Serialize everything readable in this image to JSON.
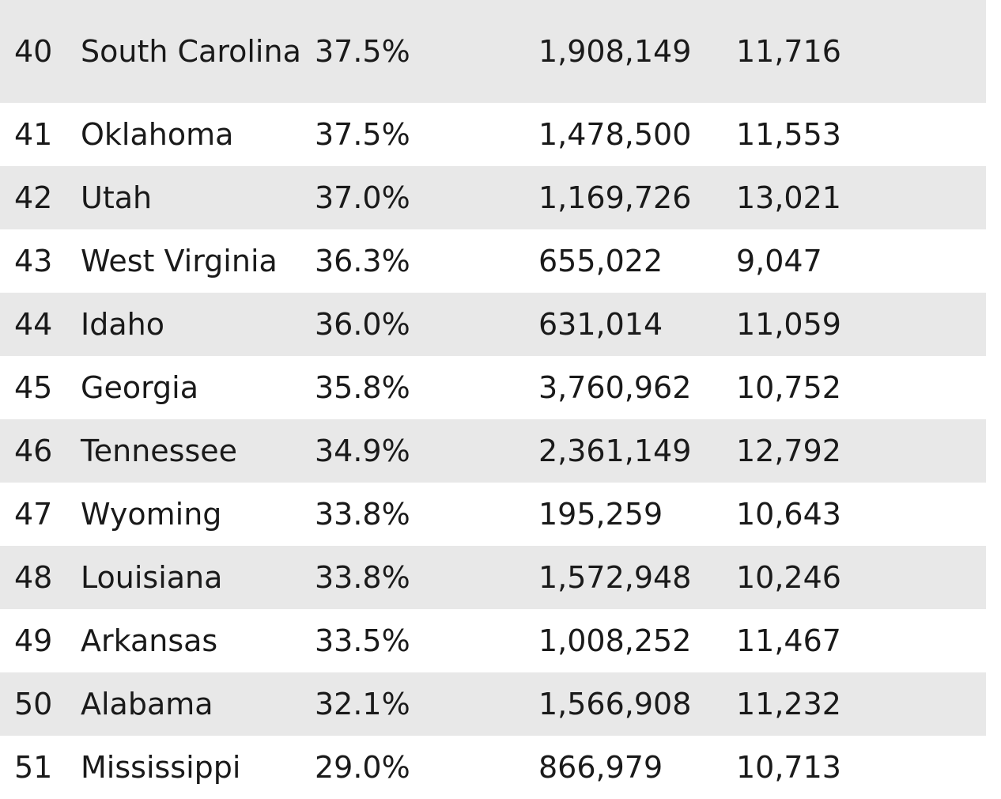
{
  "rows": [
    {
      "rank": "40",
      "state": "South Carolina",
      "percent": "37.5%",
      "population": "1,908,149",
      "value": "11,716"
    },
    {
      "rank": "41",
      "state": "Oklahoma",
      "percent": "37.5%",
      "population": "1,478,500",
      "value": "11,553"
    },
    {
      "rank": "42",
      "state": "Utah",
      "percent": "37.0%",
      "population": "1,169,726",
      "value": "13,021"
    },
    {
      "rank": "43",
      "state": "West Virginia",
      "percent": "36.3%",
      "population": "655,022",
      "value": "9,047"
    },
    {
      "rank": "44",
      "state": "Idaho",
      "percent": "36.0%",
      "population": "631,014",
      "value": "11,059"
    },
    {
      "rank": "45",
      "state": "Georgia",
      "percent": "35.8%",
      "population": "3,760,962",
      "value": "10,752"
    },
    {
      "rank": "46",
      "state": "Tennessee",
      "percent": "34.9%",
      "population": "2,361,149",
      "value": "12,792"
    },
    {
      "rank": "47",
      "state": "Wyoming",
      "percent": "33.8%",
      "population": "195,259",
      "value": "10,643"
    },
    {
      "rank": "48",
      "state": "Louisiana",
      "percent": "33.8%",
      "population": "1,572,948",
      "value": "10,246"
    },
    {
      "rank": "49",
      "state": "Arkansas",
      "percent": "33.5%",
      "population": "1,008,252",
      "value": "11,467"
    },
    {
      "rank": "50",
      "state": "Alabama",
      "percent": "32.1%",
      "population": "1,566,908",
      "value": "11,232"
    },
    {
      "rank": "51",
      "state": "Mississippi",
      "percent": "29.0%",
      "population": "866,979",
      "value": "10,713"
    }
  ]
}
